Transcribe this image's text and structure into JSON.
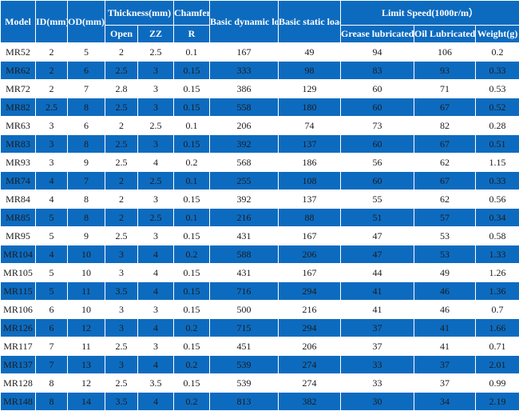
{
  "headers": {
    "model": "Model",
    "id": "ID(mm)",
    "od": "OD(mm)",
    "thickness": "Thickness(mm)",
    "open": "Open",
    "zz": "ZZ",
    "chamfer": "Chamfer",
    "r": "R",
    "dynamic": "Basic dynamic load capacity Cr",
    "static": "Basic static load capacity Cor",
    "limit_speed": "Limit Speed(1000r/m）",
    "grease": "Grease lubricated",
    "oil": "Oil Lubricated",
    "weight": "Weight(g)"
  },
  "rows": [
    [
      "MR52",
      "2",
      "5",
      "2",
      "2.5",
      "0.1",
      "167",
      "49",
      "94",
      "106",
      "0.2"
    ],
    [
      "MR62",
      "2",
      "6",
      "2.5",
      "3",
      "0.15",
      "333",
      "98",
      "83",
      "93",
      "0.33"
    ],
    [
      "MR72",
      "2",
      "7",
      "2.8",
      "3",
      "0.15",
      "386",
      "129",
      "60",
      "71",
      "0.53"
    ],
    [
      "MR82",
      "2.5",
      "8",
      "2.5",
      "3",
      "0.15",
      "558",
      "180",
      "60",
      "67",
      "0.52"
    ],
    [
      "MR63",
      "3",
      "6",
      "2",
      "2.5",
      "0.1",
      "206",
      "74",
      "73",
      "82",
      "0.28"
    ],
    [
      "MR83",
      "3",
      "8",
      "2.5",
      "3",
      "0.15",
      "392",
      "137",
      "60",
      "67",
      "0.51"
    ],
    [
      "MR93",
      "3",
      "9",
      "2.5",
      "4",
      "0.2",
      "568",
      "186",
      "56",
      "62",
      "1.15"
    ],
    [
      "MR74",
      "4",
      "7",
      "2",
      "2.5",
      "0.1",
      "255",
      "108",
      "60",
      "67",
      "0.33"
    ],
    [
      "MR84",
      "4",
      "8",
      "2",
      "3",
      "0.15",
      "392",
      "137",
      "55",
      "62",
      "0.56"
    ],
    [
      "MR85",
      "5",
      "8",
      "2",
      "2.5",
      "0.1",
      "216",
      "88",
      "51",
      "57",
      "0.34"
    ],
    [
      "MR95",
      "5",
      "9",
      "2.5",
      "3",
      "0.15",
      "431",
      "167",
      "47",
      "53",
      "0.58"
    ],
    [
      "MR104",
      "4",
      "10",
      "3",
      "4",
      "0.2",
      "588",
      "206",
      "47",
      "53",
      "1.33"
    ],
    [
      "MR105",
      "5",
      "10",
      "3",
      "4",
      "0.15",
      "431",
      "167",
      "44",
      "49",
      "1.26"
    ],
    [
      "MR115",
      "5",
      "11",
      "3.5",
      "4",
      "0.15",
      "716",
      "294",
      "41",
      "46",
      "1.36"
    ],
    [
      "MR106",
      "6",
      "10",
      "3",
      "3",
      "0.15",
      "500",
      "216",
      "41",
      "46",
      "0.7"
    ],
    [
      "MR126",
      "6",
      "12",
      "3",
      "4",
      "0.2",
      "715",
      "294",
      "37",
      "41",
      "1.66"
    ],
    [
      "MR117",
      "7",
      "11",
      "2.5",
      "3",
      "0.15",
      "451",
      "206",
      "37",
      "41",
      "0.71"
    ],
    [
      "MR137",
      "7",
      "13",
      "3",
      "4",
      "0.2",
      "539",
      "274",
      "33",
      "37",
      "2.01"
    ],
    [
      "MR128",
      "8",
      "12",
      "2.5",
      "3.5",
      "0.15",
      "539",
      "274",
      "33",
      "37",
      "0.99"
    ],
    [
      "MR148",
      "8",
      "14",
      "3.5",
      "4",
      "0.2",
      "813",
      "382",
      "30",
      "34",
      "2.19"
    ]
  ]
}
